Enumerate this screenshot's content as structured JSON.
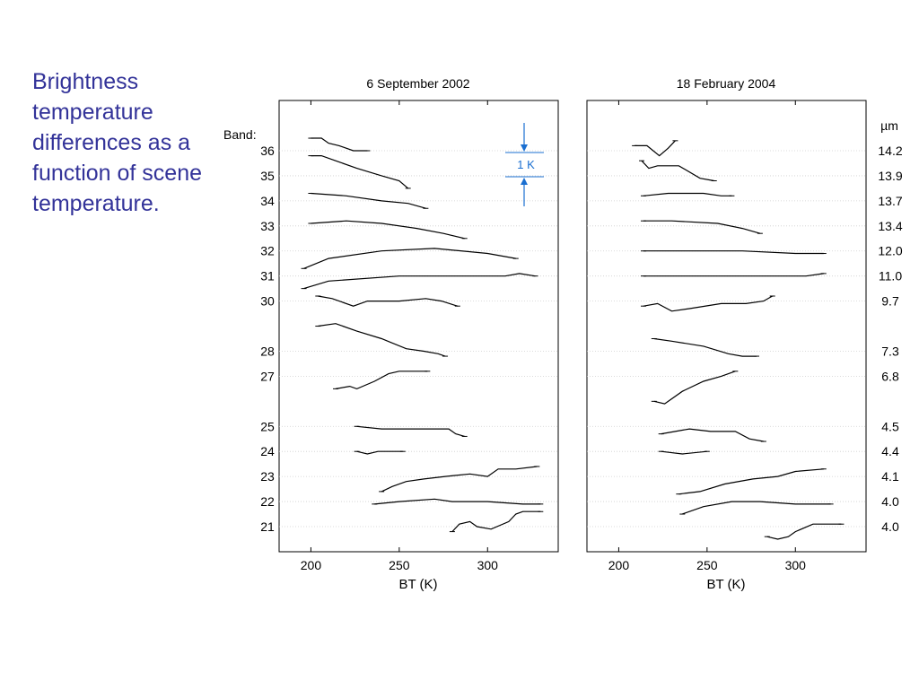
{
  "slide": {
    "title": "Brightness temperature differences as a function of scene temperature."
  },
  "chart_data": {
    "type": "line",
    "band_label": "Band:",
    "unit_label": "µm",
    "xlabel": "BT (K)",
    "xlim": [
      182,
      340
    ],
    "x_ticks": [
      200,
      250,
      300
    ],
    "bands": [
      {
        "band": "36",
        "wavelength": "14.2",
        "y": 36
      },
      {
        "band": "35",
        "wavelength": "13.9",
        "y": 35
      },
      {
        "band": "34",
        "wavelength": "13.7",
        "y": 34
      },
      {
        "band": "33",
        "wavelength": "13.4",
        "y": 33
      },
      {
        "band": "32",
        "wavelength": "12.0",
        "y": 32
      },
      {
        "band": "31",
        "wavelength": "11.0",
        "y": 31
      },
      {
        "band": "30",
        "wavelength": "9.7",
        "y": 30
      },
      {
        "band": "28",
        "wavelength": "7.3",
        "y": 28
      },
      {
        "band": "27",
        "wavelength": "6.8",
        "y": 27
      },
      {
        "band": "25",
        "wavelength": "4.5",
        "y": 25
      },
      {
        "band": "24",
        "wavelength": "4.4",
        "y": 24
      },
      {
        "band": "23",
        "wavelength": "4.1",
        "y": 23
      },
      {
        "band": "22",
        "wavelength": "4.0",
        "y": 22
      },
      {
        "band": "21",
        "wavelength": "4.0",
        "y": 21
      }
    ],
    "scale_bar_label": "1 K",
    "panels": [
      {
        "title": "6 September 2002",
        "series": [
          {
            "band": "36",
            "x": [
              200,
              206,
              210,
              216,
              224,
              232
            ],
            "y": [
              36.5,
              36.5,
              36.3,
              36.2,
              36.0,
              36.0
            ]
          },
          {
            "band": "35",
            "x": [
              200,
              206,
              214,
              226,
              240,
              250,
              255
            ],
            "y": [
              35.8,
              35.8,
              35.6,
              35.3,
              35.0,
              34.8,
              34.5
            ]
          },
          {
            "band": "34",
            "x": [
              200,
              220,
              240,
              255,
              265
            ],
            "y": [
              34.3,
              34.2,
              34.0,
              33.9,
              33.7
            ]
          },
          {
            "band": "33",
            "x": [
              200,
              220,
              240,
              260,
              275,
              287
            ],
            "y": [
              33.1,
              33.2,
              33.1,
              32.9,
              32.7,
              32.5
            ]
          },
          {
            "band": "32",
            "x": [
              196,
              210,
              240,
              270,
              300,
              316
            ],
            "y": [
              31.3,
              31.7,
              32.0,
              32.1,
              31.9,
              31.7
            ]
          },
          {
            "band": "31",
            "x": [
              196,
              210,
              250,
              290,
              310,
              318,
              327
            ],
            "y": [
              30.5,
              30.8,
              31.0,
              31.0,
              31.0,
              31.1,
              31.0
            ]
          },
          {
            "band": "30",
            "x": [
              204,
              212,
              224,
              232,
              250,
              265,
              274,
              283
            ],
            "y": [
              30.2,
              30.1,
              29.8,
              30.0,
              30.0,
              30.1,
              30.0,
              29.8
            ]
          },
          {
            "band": "28",
            "x": [
              204,
              214,
              226,
              240,
              254,
              264,
              272,
              276
            ],
            "y": [
              29.0,
              29.1,
              28.8,
              28.5,
              28.1,
              28.0,
              27.9,
              27.8
            ]
          },
          {
            "band": "27",
            "x": [
              214,
              222,
              226,
              236,
              244,
              250,
              256,
              266
            ],
            "y": [
              26.5,
              26.6,
              26.5,
              26.8,
              27.1,
              27.2,
              27.2,
              27.2
            ]
          },
          {
            "band": "25",
            "x": [
              226,
              240,
              254,
              268,
              278,
              282,
              287
            ],
            "y": [
              25.0,
              24.9,
              24.9,
              24.9,
              24.9,
              24.7,
              24.6
            ]
          },
          {
            "band": "24",
            "x": [
              226,
              232,
              238,
              252
            ],
            "y": [
              24.0,
              23.9,
              24.0,
              24.0
            ]
          },
          {
            "band": "23",
            "x": [
              240,
              246,
              254,
              264,
              276,
              290,
              300,
              306,
              316,
              328
            ],
            "y": [
              22.4,
              22.6,
              22.8,
              22.9,
              23.0,
              23.1,
              23.0,
              23.3,
              23.3,
              23.4
            ]
          },
          {
            "band": "22",
            "x": [
              236,
              250,
              270,
              280,
              300,
              320,
              330
            ],
            "y": [
              21.9,
              22.0,
              22.1,
              22.0,
              22.0,
              21.9,
              21.9
            ]
          },
          {
            "band": "21",
            "x": [
              280,
              284,
              290,
              294,
              302,
              312,
              316,
              320,
              330
            ],
            "y": [
              20.8,
              21.1,
              21.2,
              21.0,
              20.9,
              21.2,
              21.5,
              21.6,
              21.6
            ]
          }
        ]
      },
      {
        "title": "18 February 2004",
        "series": [
          {
            "band": "36",
            "x": [
              209,
              216,
              223,
              228,
              232
            ],
            "y": [
              36.2,
              36.2,
              35.8,
              36.1,
              36.4
            ]
          },
          {
            "band": "35",
            "x": [
              213,
              217,
              222,
              234,
              246,
              254
            ],
            "y": [
              35.6,
              35.3,
              35.4,
              35.4,
              34.9,
              34.8
            ]
          },
          {
            "band": "34",
            "x": [
              214,
              228,
              248,
              258,
              264
            ],
            "y": [
              34.2,
              34.3,
              34.3,
              34.2,
              34.2
            ]
          },
          {
            "band": "33",
            "x": [
              214,
              230,
              256,
              270,
              280
            ],
            "y": [
              33.2,
              33.2,
              33.1,
              32.9,
              32.7
            ]
          },
          {
            "band": "32",
            "x": [
              214,
              240,
              270,
              300,
              316
            ],
            "y": [
              32.0,
              32.0,
              32.0,
              31.9,
              31.9
            ]
          },
          {
            "band": "31",
            "x": [
              214,
              250,
              280,
              306,
              316
            ],
            "y": [
              31.0,
              31.0,
              31.0,
              31.0,
              31.1
            ]
          },
          {
            "band": "30",
            "x": [
              214,
              222,
              230,
              240,
              258,
              272,
              282,
              287
            ],
            "y": [
              29.8,
              29.9,
              29.6,
              29.7,
              29.9,
              29.9,
              30.0,
              30.2
            ]
          },
          {
            "band": "28",
            "x": [
              220,
              230,
              248,
              262,
              270,
              278
            ],
            "y": [
              28.5,
              28.4,
              28.2,
              27.9,
              27.8,
              27.8
            ]
          },
          {
            "band": "27",
            "x": [
              220,
              226,
              236,
              248,
              258,
              266
            ],
            "y": [
              26.0,
              25.9,
              26.4,
              26.8,
              27.0,
              27.2
            ]
          },
          {
            "band": "25",
            "x": [
              224,
              232,
              240,
              252,
              266,
              274,
              282
            ],
            "y": [
              24.7,
              24.8,
              24.9,
              24.8,
              24.8,
              24.5,
              24.4
            ]
          },
          {
            "band": "24",
            "x": [
              224,
              236,
              250
            ],
            "y": [
              24.0,
              23.9,
              24.0
            ]
          },
          {
            "band": "23",
            "x": [
              234,
              246,
              260,
              276,
              290,
              300,
              316
            ],
            "y": [
              22.3,
              22.4,
              22.7,
              22.9,
              23.0,
              23.2,
              23.3
            ]
          },
          {
            "band": "22",
            "x": [
              236,
              248,
              264,
              280,
              300,
              320
            ],
            "y": [
              21.5,
              21.8,
              22.0,
              22.0,
              21.9,
              21.9
            ]
          },
          {
            "band": "21",
            "x": [
              284,
              290,
              296,
              300,
              310,
              320,
              326
            ],
            "y": [
              20.6,
              20.5,
              20.6,
              20.8,
              21.1,
              21.1,
              21.1
            ]
          }
        ]
      }
    ]
  }
}
